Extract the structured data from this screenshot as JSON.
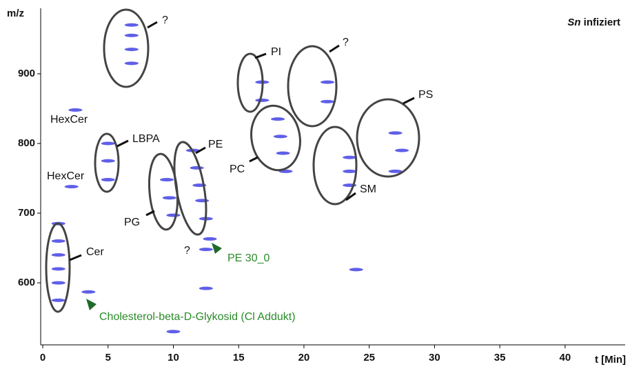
{
  "chart_data": {
    "type": "scatter",
    "title_italic": "Sn",
    "title": "infiziert",
    "xlabel": "t [Min]",
    "ylabel": "m/z",
    "xlim": [
      -0.16,
      44.6
    ],
    "xticks": [
      0,
      5,
      10,
      15,
      20,
      25,
      30,
      35,
      40
    ],
    "ylim": [
      511,
      994
    ],
    "yticks": [
      600,
      700,
      800,
      900
    ],
    "series": [
      {
        "color": "#2a2ae0",
        "x": [
          1.2,
          1.2,
          1.2,
          1.2,
          1.2,
          1.2,
          3.5,
          2.5,
          2.2,
          5.0,
          5.0,
          5.0,
          6.8,
          6.8,
          6.8,
          6.8,
          9.5,
          9.7,
          10.0,
          11.5,
          11.8,
          12.0,
          12.2,
          12.5,
          12.8,
          12.5,
          16.8,
          16.8,
          18.0,
          18.2,
          18.4,
          18.6,
          21.8,
          21.8,
          23.5,
          23.5,
          23.5,
          27.0,
          27.5,
          27.0,
          12.5,
          10.0,
          24.0
        ],
        "y": [
          685,
          660,
          640,
          620,
          600,
          575,
          587,
          848,
          738,
          800,
          775,
          748,
          970,
          955,
          935,
          915,
          748,
          722,
          697,
          790,
          765,
          740,
          718,
          692,
          663,
          648,
          888,
          862,
          835,
          810,
          786,
          760,
          888,
          860,
          780,
          760,
          740,
          815,
          790,
          760,
          592,
          530,
          619
        ]
      }
    ],
    "annotations": [
      "?",
      "PI",
      "?",
      "PS",
      "HexCer",
      "LBPA",
      "PE",
      "PC",
      "HexCer",
      "SM",
      "PG",
      "Cer",
      "?",
      "PE 30_0",
      "Cholesterol-beta-D-Glykosid (Cl Addukt)"
    ]
  }
}
